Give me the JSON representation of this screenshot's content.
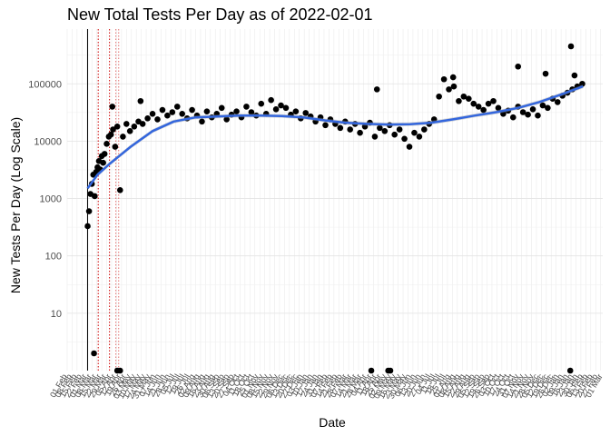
{
  "chart_data": {
    "type": "scatter",
    "title": "New Total Tests Per Day as of 2022-02-01",
    "xlabel": "Date",
    "ylabel": "New Tests Per Day (Log Scale)",
    "y_scale": "log10",
    "y_ticks": [
      10,
      100,
      1000,
      10000,
      100000
    ],
    "y_tick_labels": [
      "10",
      "100",
      "1000",
      "10000",
      "100000"
    ],
    "xlim": [
      "2020-02-01",
      "2022-03-01"
    ],
    "ylim": [
      1,
      900000
    ],
    "grid": true,
    "point_color": "#000000",
    "trend_color": "#3366dd",
    "vlines": [
      {
        "x": "2020-03-01",
        "color": "#000000",
        "style": "solid"
      },
      {
        "x": "2020-03-16",
        "color": "#cc0000",
        "style": "dotted"
      },
      {
        "x": "2020-04-01",
        "color": "#cc0000",
        "style": "dotted"
      },
      {
        "x": "2020-04-10",
        "color": "#e07070",
        "style": "dotted"
      },
      {
        "x": "2020-04-14",
        "color": "#e07070",
        "style": "dotted"
      }
    ],
    "trend": {
      "x": [
        "2020-03-01",
        "2020-03-15",
        "2020-04-01",
        "2020-05-01",
        "2020-06-01",
        "2020-07-01",
        "2020-08-01",
        "2020-09-01",
        "2020-10-01",
        "2020-11-01",
        "2020-12-01",
        "2021-01-01",
        "2021-02-01",
        "2021-03-01",
        "2021-04-01",
        "2021-05-01",
        "2021-06-01",
        "2021-07-01",
        "2021-08-01",
        "2021-09-01",
        "2021-10-01",
        "2021-11-01",
        "2021-12-01",
        "2022-01-01",
        "2022-02-01"
      ],
      "y": [
        1500,
        2600,
        4000,
        8000,
        15000,
        22000,
        26000,
        27000,
        28000,
        28000,
        27500,
        26000,
        23000,
        21000,
        20000,
        19500,
        19800,
        21000,
        24000,
        28000,
        32000,
        38000,
        48000,
        65000,
        90000
      ]
    },
    "series": [
      {
        "x": [
          "2020-03-01",
          "2020-03-03",
          "2020-03-05",
          "2020-03-07",
          "2020-03-09",
          "2020-03-11",
          "2020-03-13",
          "2020-03-15",
          "2020-03-17",
          "2020-03-19",
          "2020-03-21",
          "2020-03-23",
          "2020-03-25",
          "2020-03-28",
          "2020-03-31",
          "2020-04-03",
          "2020-04-06",
          "2020-04-09",
          "2020-04-12",
          "2020-04-16",
          "2020-04-20",
          "2020-04-25",
          "2020-04-30",
          "2020-05-06",
          "2020-05-12",
          "2020-05-18",
          "2020-05-25",
          "2020-06-01",
          "2020-06-08",
          "2020-06-15",
          "2020-06-22",
          "2020-06-29",
          "2020-07-06",
          "2020-07-13",
          "2020-07-20",
          "2020-07-27",
          "2020-08-03",
          "2020-08-10",
          "2020-08-17",
          "2020-08-24",
          "2020-08-31",
          "2020-09-07",
          "2020-09-14",
          "2020-09-21",
          "2020-09-28",
          "2020-10-05",
          "2020-10-12",
          "2020-10-19",
          "2020-10-26",
          "2020-11-02",
          "2020-11-09",
          "2020-11-16",
          "2020-11-23",
          "2020-11-30",
          "2020-12-07",
          "2020-12-14",
          "2020-12-21",
          "2020-12-28",
          "2021-01-04",
          "2021-01-11",
          "2021-01-18",
          "2021-01-25",
          "2021-02-01",
          "2021-02-08",
          "2021-02-15",
          "2021-02-22",
          "2021-03-01",
          "2021-03-08",
          "2021-03-15",
          "2021-03-22",
          "2021-03-29",
          "2021-04-05",
          "2021-04-12",
          "2021-04-19",
          "2021-04-26",
          "2021-05-03",
          "2021-05-10",
          "2021-05-17",
          "2021-05-24",
          "2021-05-31",
          "2021-06-07",
          "2021-06-14",
          "2021-06-21",
          "2021-06-28",
          "2021-07-05",
          "2021-07-12",
          "2021-07-19",
          "2021-07-26",
          "2021-08-02",
          "2021-08-09",
          "2021-08-16",
          "2021-08-23",
          "2021-08-30",
          "2021-09-06",
          "2021-09-13",
          "2021-09-20",
          "2021-09-27",
          "2021-10-04",
          "2021-10-11",
          "2021-10-18",
          "2021-10-25",
          "2021-11-01",
          "2021-11-08",
          "2021-11-15",
          "2021-11-22",
          "2021-11-29",
          "2021-12-06",
          "2021-12-13",
          "2021-12-20",
          "2021-12-27",
          "2022-01-03",
          "2022-01-10",
          "2022-01-17",
          "2022-01-24",
          "2022-01-31"
        ],
        "y": [
          330,
          600,
          1200,
          1800,
          2600,
          1100,
          2900,
          3500,
          4500,
          3200,
          5500,
          4200,
          6000,
          9000,
          12000,
          13000,
          16000,
          8000,
          18000,
          1400,
          12000,
          20000,
          15000,
          18000,
          22000,
          20000,
          25000,
          30000,
          24000,
          35000,
          28000,
          32000,
          40000,
          30000,
          25000,
          35000,
          28000,
          22000,
          33000,
          26000,
          30000,
          38000,
          24000,
          29000,
          33000,
          26000,
          40000,
          32000,
          28000,
          45000,
          30000,
          52000,
          36000,
          42000,
          38000,
          29000,
          33000,
          25000,
          31000,
          27000,
          22000,
          26000,
          19000,
          24000,
          20000,
          17000,
          22000,
          16000,
          20000,
          14000,
          18000,
          21000,
          12000,
          17000,
          15000,
          19000,
          13000,
          16000,
          11000,
          8000,
          14000,
          12000,
          16000,
          20000,
          24000,
          60000,
          120000,
          80000,
          90000,
          50000,
          60000,
          55000,
          45000,
          40000,
          35000,
          45000,
          50000,
          38000,
          30000,
          34000,
          26000,
          40000,
          32000,
          29000,
          36000,
          28000,
          42000,
          38000,
          55000,
          48000,
          62000,
          70000,
          80000,
          90000,
          100000
        ]
      },
      {
        "x": [
          "2020-03-10",
          "2020-04-12",
          "2020-04-16",
          "2021-04-07",
          "2021-05-01",
          "2021-05-04",
          "2022-01-14"
        ],
        "y": [
          2,
          1,
          1,
          1,
          1,
          1,
          1
        ]
      },
      {
        "x": [
          "2020-04-05",
          "2020-05-15",
          "2021-04-15",
          "2021-08-01",
          "2021-11-01",
          "2021-12-10",
          "2022-01-15",
          "2022-01-20"
        ],
        "y": [
          40000,
          50000,
          80000,
          130000,
          200000,
          150000,
          450000,
          140000
        ]
      }
    ],
    "x_tick_labels": [
      "01 Feb",
      "08 Feb",
      "15 Feb",
      "22 Feb",
      "01 Mar",
      "08 Mar",
      "15 Mar",
      "22 Mar",
      "29 Mar",
      "05 Apr",
      "12 Apr",
      "19 Apr",
      "26 Apr",
      "03 May",
      "10 May",
      "17 May",
      "24 May",
      "31 May",
      "07 Jun",
      "14 Jun",
      "21 Jun",
      "28 Jun",
      "05 Jul",
      "12 Jul",
      "19 Jul",
      "26 Jul",
      "02 Aug",
      "09 Aug",
      "16 Aug",
      "23 Aug",
      "30 Aug",
      "06 Sep",
      "13 Sep",
      "20 Sep",
      "27 Sep",
      "04 Oct",
      "11 Oct",
      "18 Oct",
      "25 Oct",
      "01 Nov",
      "08 Nov",
      "15 Nov",
      "22 Nov",
      "29 Nov",
      "06 Dec",
      "13 Dec",
      "20 Dec",
      "27 Dec",
      "03 Jan",
      "10 Jan",
      "17 Jan",
      "24 Jan",
      "31 Jan",
      "07 Feb",
      "14 Feb",
      "21 Feb",
      "28 Feb",
      "07 Mar",
      "14 Mar",
      "21 Mar",
      "28 Mar",
      "04 Apr",
      "11 Apr",
      "18 Apr",
      "25 Apr",
      "02 May",
      "09 May",
      "16 May",
      "23 May",
      "30 May",
      "06 Jun",
      "13 Jun",
      "20 Jun",
      "27 Jun",
      "04 Jul",
      "11 Jul",
      "18 Jul",
      "25 Jul",
      "01 Aug",
      "08 Aug",
      "15 Aug",
      "22 Aug",
      "29 Aug",
      "05 Sep",
      "12 Sep",
      "19 Sep",
      "26 Sep",
      "03 Oct",
      "10 Oct",
      "17 Oct",
      "24 Oct",
      "31 Oct",
      "07 Nov",
      "14 Nov",
      "21 Nov",
      "28 Nov",
      "05 Dec",
      "12 Dec",
      "19 Dec",
      "26 Dec",
      "02 Jan",
      "09 Jan",
      "16 Jan",
      "23 Jan",
      "30 Jan",
      "06 Feb",
      "13 Feb",
      "20 Feb",
      "27 Feb",
      "01 Mar"
    ]
  }
}
